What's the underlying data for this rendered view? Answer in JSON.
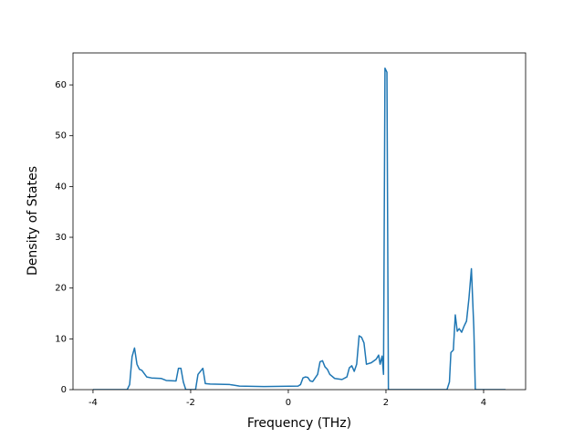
{
  "chart_data": {
    "type": "line",
    "xlabel": "Frequency (THz)",
    "ylabel": "Density of States",
    "x": [
      -4,
      -3.3,
      -3.25,
      -3.2,
      -3.15,
      -3.1,
      -3.05,
      -3.0,
      -2.9,
      -2.8,
      -2.6,
      -2.5,
      -2.3,
      -2.25,
      -2.2,
      -2.15,
      -2.1,
      -1.9,
      -1.85,
      -1.75,
      -1.7,
      -1.6,
      -1.2,
      -1.0,
      -0.5,
      0.2,
      0.25,
      0.3,
      0.35,
      0.4,
      0.45,
      0.5,
      0.6,
      0.65,
      0.7,
      0.75,
      0.8,
      0.85,
      0.95,
      1.1,
      1.2,
      1.25,
      1.3,
      1.35,
      1.4,
      1.45,
      1.5,
      1.55,
      1.6,
      1.7,
      1.8,
      1.85,
      1.88,
      1.92,
      1.95,
      1.98,
      2.02,
      2.05,
      3.25,
      3.3,
      3.33,
      3.38,
      3.42,
      3.46,
      3.5,
      3.55,
      3.6,
      3.65,
      3.7,
      3.75,
      3.8,
      3.83,
      4.45
    ],
    "series": [
      {
        "color": "#1f77b4",
        "values": [
          0,
          0,
          1,
          6.5,
          8.2,
          5,
          4,
          3.8,
          2.5,
          2.3,
          2.2,
          1.8,
          1.7,
          4.2,
          4.2,
          1.5,
          0,
          0,
          3,
          4.2,
          1.2,
          1.1,
          1.0,
          0.7,
          0.6,
          0.7,
          1,
          2.3,
          2.5,
          2.4,
          1.7,
          1.6,
          3,
          5.5,
          5.7,
          4.5,
          4,
          3,
          2.2,
          2,
          2.5,
          4.3,
          4.7,
          3.6,
          5,
          10.6,
          10.3,
          9.2,
          5,
          5.3,
          6,
          6.8,
          5,
          6.6,
          3,
          63.3,
          62.5,
          0,
          0,
          1.5,
          7.3,
          7.8,
          14.7,
          11.5,
          12,
          11.3,
          12.5,
          13.5,
          18,
          23.8,
          12,
          0,
          0
        ]
      }
    ],
    "xlim": [
      -4.41,
      4.86
    ],
    "ylim": [
      0,
      66.3
    ],
    "xticks": [
      -4,
      -2,
      0,
      2,
      4
    ],
    "yticks": [
      0,
      10,
      20,
      30,
      40,
      50,
      60
    ]
  }
}
